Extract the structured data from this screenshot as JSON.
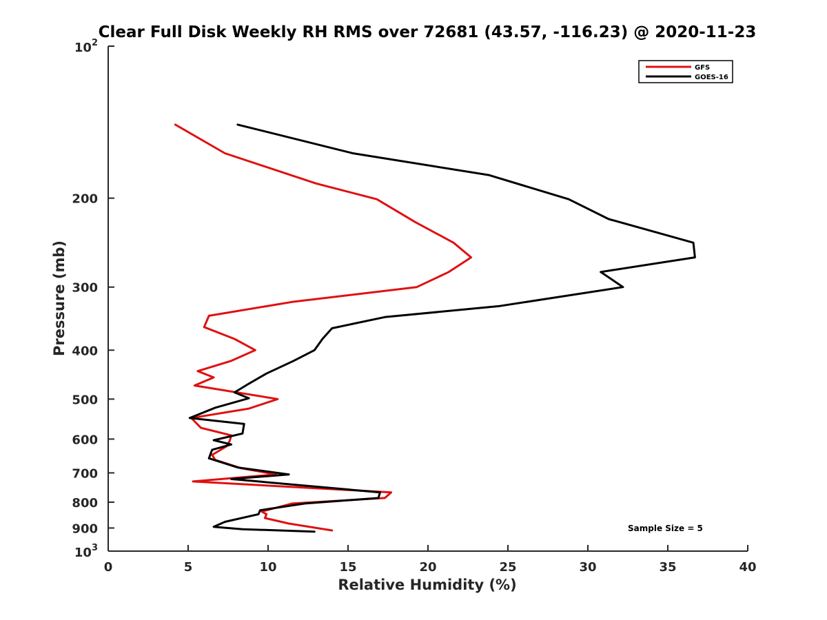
{
  "chart_data": {
    "type": "line",
    "title": "Clear Full Disk Weekly RH RMS over 72681 (43.57, -116.23) @ 2020-11-23",
    "xlabel": "Relative Humidity (%)",
    "ylabel": "Pressure (mb)",
    "xlim": [
      0,
      40
    ],
    "ylim": [
      100,
      1000
    ],
    "y_scale": "log",
    "y_reversed": true,
    "grid": false,
    "legend_position": "top-right",
    "x_ticks": [
      "0",
      "5",
      "10",
      "15",
      "20",
      "25",
      "30",
      "35",
      "40"
    ],
    "y_ticks": [
      {
        "value": 100,
        "base": "10",
        "exp": "2"
      },
      {
        "value": 200,
        "label": "200"
      },
      {
        "value": 300,
        "label": "300"
      },
      {
        "value": 400,
        "label": "400"
      },
      {
        "value": 500,
        "label": "500"
      },
      {
        "value": 600,
        "label": "600"
      },
      {
        "value": 700,
        "label": "700"
      },
      {
        "value": 800,
        "label": "800"
      },
      {
        "value": 900,
        "label": "900"
      },
      {
        "value": 1000,
        "base": "10",
        "exp": "3"
      }
    ],
    "annotation": "Sample Size = 5",
    "series": [
      {
        "name": "GFS",
        "color": "#e01010",
        "points": [
          [
            4.2,
            143
          ],
          [
            7.3,
            163
          ],
          [
            13,
            187
          ],
          [
            16.8,
            201
          ],
          [
            19.2,
            223
          ],
          [
            21.6,
            245
          ],
          [
            22.7,
            262
          ],
          [
            21.3,
            280
          ],
          [
            19.3,
            300
          ],
          [
            11.5,
            321
          ],
          [
            6.3,
            342
          ],
          [
            6,
            360
          ],
          [
            7.9,
            380
          ],
          [
            9.2,
            400
          ],
          [
            7.7,
            420
          ],
          [
            5.6,
            440
          ],
          [
            6.6,
            453
          ],
          [
            5.4,
            470
          ],
          [
            10.6,
            500
          ],
          [
            8.8,
            522
          ],
          [
            5.2,
            545
          ],
          [
            5.8,
            570
          ],
          [
            7.7,
            590
          ],
          [
            7.6,
            605
          ],
          [
            7.4,
            620
          ],
          [
            6.5,
            645
          ],
          [
            6.7,
            660
          ],
          [
            8.3,
            685
          ],
          [
            10.5,
            705
          ],
          [
            5.3,
            728
          ],
          [
            17.7,
            765
          ],
          [
            17.3,
            785
          ],
          [
            11.5,
            805
          ],
          [
            9.6,
            835
          ],
          [
            9.9,
            845
          ],
          [
            9.8,
            860
          ],
          [
            11.3,
            882
          ],
          [
            14,
            910
          ]
        ]
      },
      {
        "name": "GOES-16",
        "color": "#000000",
        "points": [
          [
            8.1,
            143
          ],
          [
            15.3,
            163
          ],
          [
            23.8,
            180
          ],
          [
            28.8,
            201
          ],
          [
            31.3,
            220
          ],
          [
            36.6,
            245
          ],
          [
            36.7,
            262
          ],
          [
            30.8,
            280
          ],
          [
            32.2,
            300
          ],
          [
            24.5,
            327
          ],
          [
            17.3,
            344
          ],
          [
            14,
            362
          ],
          [
            13.4,
            380
          ],
          [
            12.9,
            400
          ],
          [
            11.6,
            420
          ],
          [
            9.9,
            445
          ],
          [
            8.8,
            466
          ],
          [
            7.9,
            485
          ],
          [
            8.8,
            498
          ],
          [
            6.7,
            520
          ],
          [
            5.1,
            545
          ],
          [
            8.5,
            560
          ],
          [
            8.4,
            585
          ],
          [
            6.6,
            603
          ],
          [
            7.7,
            615
          ],
          [
            6.5,
            630
          ],
          [
            6.3,
            655
          ],
          [
            8.1,
            683
          ],
          [
            11.3,
            705
          ],
          [
            7.7,
            720
          ],
          [
            17,
            765
          ],
          [
            16.9,
            785
          ],
          [
            12.3,
            805
          ],
          [
            9.5,
            830
          ],
          [
            9.4,
            845
          ],
          [
            7.3,
            875
          ],
          [
            6.6,
            895
          ],
          [
            8.4,
            905
          ],
          [
            12.9,
            915
          ]
        ]
      }
    ]
  }
}
